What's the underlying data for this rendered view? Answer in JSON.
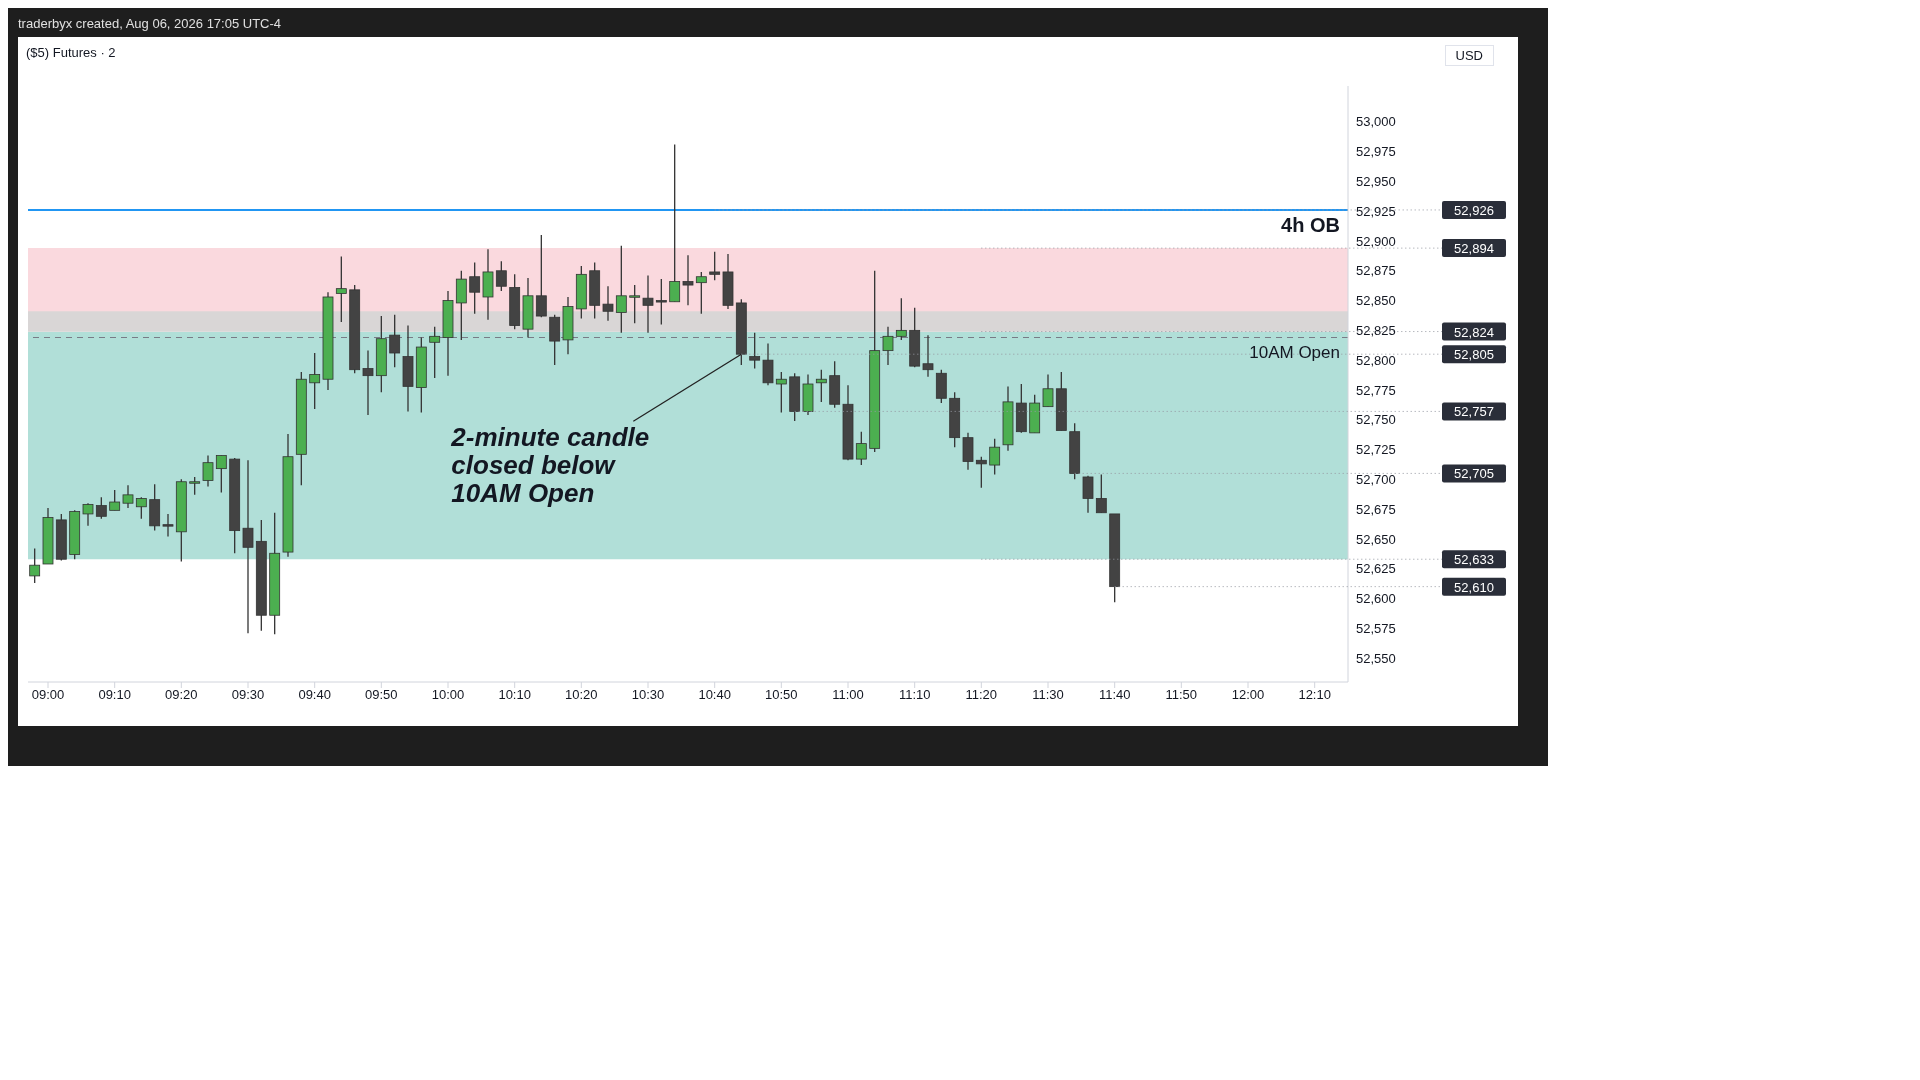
{
  "chart_data": {
    "type": "candlestick",
    "title": "traderbyx created, Aug 06, 2026 17:05 UTC-4",
    "subtitle": "($5) Futures · 2",
    "ylabel": "USD",
    "x": [
      8.9667,
      9,
      9.0333,
      9.0667,
      9.1,
      9.1333,
      9.1667,
      9.2,
      9.2333,
      9.2667,
      9.3,
      9.3333,
      9.3667,
      9.4,
      9.4333,
      9.4667,
      9.5,
      9.5333,
      9.5667,
      9.6,
      9.6333,
      9.6667,
      9.7,
      9.7333,
      9.7667,
      9.8,
      9.8333,
      9.8667,
      9.9,
      9.9333,
      9.9667,
      10,
      10.0333,
      10.0667,
      10.1,
      10.1333,
      10.1667,
      10.2,
      10.2333,
      10.2667,
      10.3,
      10.3333,
      10.3667,
      10.4,
      10.4333,
      10.4667,
      10.5,
      10.5333,
      10.5667,
      10.6,
      10.6333,
      10.6667,
      10.7,
      10.7333,
      10.7667,
      10.8,
      10.8333,
      10.8667,
      10.9,
      10.9333,
      10.9667,
      11,
      11.0333,
      11.0667,
      11.1,
      11.1333,
      11.1667,
      11.2,
      11.2333,
      11.2667,
      11.3,
      11.3333,
      11.3667,
      11.4,
      11.4333,
      11.4667,
      11.5,
      11.5333,
      11.5667,
      11.6,
      11.6333,
      11.6667
    ],
    "ohlc": [
      [
        52619,
        52642,
        52613,
        52628
      ],
      [
        52629,
        52676,
        52629,
        52668
      ],
      [
        52666,
        52671,
        52632,
        52633
      ],
      [
        52637,
        52674,
        52633,
        52673
      ],
      [
        52671,
        52680,
        52661,
        52679
      ],
      [
        52678,
        52685,
        52667,
        52669
      ],
      [
        52674,
        52691,
        52674,
        52681
      ],
      [
        52680,
        52695,
        52676,
        52687
      ],
      [
        52677,
        52685,
        52667,
        52684
      ],
      [
        52683,
        52696,
        52657,
        52661
      ],
      [
        52662,
        52671,
        52652,
        52661
      ],
      [
        52656,
        52700,
        52631,
        52698
      ],
      [
        52697,
        52702,
        52687,
        52698
      ],
      [
        52699,
        52720,
        52694,
        52714
      ],
      [
        52709,
        52720,
        52689,
        52720
      ],
      [
        52717,
        52718,
        52638,
        52657
      ],
      [
        52659,
        52716,
        52571,
        52643
      ],
      [
        52648,
        52666,
        52573,
        52586
      ],
      [
        52586,
        52672,
        52570,
        52638
      ],
      [
        52639,
        52738,
        52635,
        52719
      ],
      [
        52721,
        52790,
        52695,
        52784
      ],
      [
        52781,
        52806,
        52759,
        52788
      ],
      [
        52784,
        52857,
        52775,
        52853
      ],
      [
        52856,
        52887,
        52832,
        52860
      ],
      [
        52859,
        52863,
        52789,
        52792
      ],
      [
        52793,
        52808,
        52754,
        52787
      ],
      [
        52787,
        52837,
        52773,
        52818
      ],
      [
        52821,
        52838,
        52794,
        52806
      ],
      [
        52803,
        52829,
        52757,
        52778
      ],
      [
        52777,
        52819,
        52756,
        52811
      ],
      [
        52815,
        52828,
        52785,
        52820
      ],
      [
        52819,
        52858,
        52787,
        52850
      ],
      [
        52848,
        52875,
        52817,
        52868
      ],
      [
        52870,
        52882,
        52839,
        52857
      ],
      [
        52853,
        52893,
        52834,
        52874
      ],
      [
        52875,
        52883,
        52858,
        52862
      ],
      [
        52861,
        52872,
        52826,
        52829
      ],
      [
        52826,
        52869,
        52819,
        52854
      ],
      [
        52854,
        52905,
        52836,
        52837
      ],
      [
        52836,
        52838,
        52796,
        52816
      ],
      [
        52817,
        52853,
        52805,
        52845
      ],
      [
        52843,
        52879,
        52835,
        52872
      ],
      [
        52875,
        52882,
        52835,
        52846
      ],
      [
        52847,
        52862,
        52833,
        52841
      ],
      [
        52840,
        52896,
        52823,
        52854
      ],
      [
        52853,
        52863,
        52831,
        52854
      ],
      [
        52852,
        52871,
        52823,
        52846
      ],
      [
        52850,
        52868,
        52830,
        52849
      ],
      [
        52849,
        52981,
        52849,
        52866
      ],
      [
        52866,
        52888,
        52846,
        52863
      ],
      [
        52865,
        52874,
        52839,
        52870
      ],
      [
        52874,
        52891,
        52867,
        52872
      ],
      [
        52874,
        52889,
        52843,
        52846
      ],
      [
        52848,
        52851,
        52796,
        52805
      ],
      [
        52803,
        52823,
        52793,
        52800
      ],
      [
        52800,
        52814,
        52779,
        52781
      ],
      [
        52780,
        52790,
        52756,
        52784
      ],
      [
        52786,
        52789,
        52749,
        52757
      ],
      [
        52757,
        52788,
        52754,
        52780
      ],
      [
        52781,
        52792,
        52765,
        52784
      ],
      [
        52787,
        52799,
        52760,
        52763
      ],
      [
        52763,
        52779,
        52716,
        52717
      ],
      [
        52717,
        52740,
        52712,
        52730
      ],
      [
        52726,
        52875,
        52723,
        52808
      ],
      [
        52808,
        52828,
        52796,
        52820
      ],
      [
        52820,
        52852,
        52817,
        52825
      ],
      [
        52825,
        52844,
        52794,
        52795
      ],
      [
        52797,
        52821,
        52786,
        52792
      ],
      [
        52789,
        52792,
        52764,
        52768
      ],
      [
        52768,
        52773,
        52727,
        52735
      ],
      [
        52735,
        52739,
        52708,
        52715
      ],
      [
        52716,
        52719,
        52693,
        52713
      ],
      [
        52712,
        52734,
        52704,
        52727
      ],
      [
        52729,
        52778,
        52724,
        52765
      ],
      [
        52764,
        52780,
        52739,
        52740
      ],
      [
        52739,
        52771,
        52739,
        52764
      ],
      [
        52761,
        52788,
        52761,
        52776
      ],
      [
        52776,
        52790,
        52741,
        52741
      ],
      [
        52740,
        52747,
        52700,
        52705
      ],
      [
        52702,
        52703,
        52672,
        52684
      ],
      [
        52684,
        52704,
        52672,
        52672
      ],
      [
        52671,
        52671,
        52597,
        52610
      ]
    ],
    "colors": [
      "#4caf50",
      "#4caf50",
      "#434343",
      "#4caf50",
      "#4caf50",
      "#434343",
      "#4caf50",
      "#4caf50",
      "#4caf50",
      "#434343",
      "#434343",
      "#4caf50",
      "#4caf50",
      "#4caf50",
      "#4caf50",
      "#434343",
      "#434343",
      "#434343",
      "#4caf50",
      "#4caf50",
      "#4caf50",
      "#4caf50",
      "#4caf50",
      "#4caf50",
      "#434343",
      "#434343",
      "#4caf50",
      "#434343",
      "#434343",
      "#4caf50",
      "#4caf50",
      "#4caf50",
      "#4caf50",
      "#434343",
      "#4caf50",
      "#434343",
      "#434343",
      "#4caf50",
      "#434343",
      "#434343",
      "#4caf50",
      "#4caf50",
      "#434343",
      "#434343",
      "#4caf50",
      "#4caf50",
      "#434343",
      "#434343",
      "#4caf50",
      "#434343",
      "#4caf50",
      "#434343",
      "#434343",
      "#434343",
      "#434343",
      "#434343",
      "#4caf50",
      "#434343",
      "#4caf50",
      "#4caf50",
      "#434343",
      "#434343",
      "#4caf50",
      "#4caf50",
      "#4caf50",
      "#4caf50",
      "#434343",
      "#434343",
      "#434343",
      "#434343",
      "#434343",
      "#434343",
      "#4caf50",
      "#4caf50",
      "#434343",
      "#4caf50",
      "#4caf50",
      "#434343",
      "#434343",
      "#434343",
      "#434343",
      "#434343"
    ],
    "xlim": [
      8.95,
      12.25
    ],
    "xticks": [
      {
        "value": 9,
        "label": "09:00"
      },
      {
        "value": 9.1667,
        "label": "09:10"
      },
      {
        "value": 9.3333,
        "label": "09:20"
      },
      {
        "value": 9.5,
        "label": "09:30"
      },
      {
        "value": 9.6667,
        "label": "09:40"
      },
      {
        "value": 9.8333,
        "label": "09:50"
      },
      {
        "value": 10,
        "label": "10:00"
      },
      {
        "value": 10.1667,
        "label": "10:10"
      },
      {
        "value": 10.3333,
        "label": "10:20"
      },
      {
        "value": 10.5,
        "label": "10:30"
      },
      {
        "value": 10.6667,
        "label": "10:40"
      },
      {
        "value": 10.8333,
        "label": "10:50"
      },
      {
        "value": 11,
        "label": "11:00"
      },
      {
        "value": 11.1667,
        "label": "11:10"
      },
      {
        "value": 11.3333,
        "label": "11:20"
      },
      {
        "value": 11.5,
        "label": "11:30"
      },
      {
        "value": 11.6667,
        "label": "11:40"
      },
      {
        "value": 11.8333,
        "label": "11:50"
      },
      {
        "value": 12,
        "label": "12:00"
      },
      {
        "value": 12.1667,
        "label": "12:10"
      }
    ],
    "ylim": [
      52530,
      53030
    ],
    "yticks": [
      {
        "value": 52550,
        "label": "52,550"
      },
      {
        "value": 52575,
        "label": "52,575"
      },
      {
        "value": 52600,
        "label": "52,600"
      },
      {
        "value": 52625,
        "label": "52,625"
      },
      {
        "value": 52650,
        "label": "52,650"
      },
      {
        "value": 52675,
        "label": "52,675"
      },
      {
        "value": 52700,
        "label": "52,700"
      },
      {
        "value": 52725,
        "label": "52,725"
      },
      {
        "value": 52750,
        "label": "52,750"
      },
      {
        "value": 52775,
        "label": "52,775"
      },
      {
        "value": 52800,
        "label": "52,800"
      },
      {
        "value": 52825,
        "label": "52,825"
      },
      {
        "value": 52850,
        "label": "52,850"
      },
      {
        "value": 52875,
        "label": "52,875"
      },
      {
        "value": 52900,
        "label": "52,900"
      },
      {
        "value": 52925,
        "label": "52,925"
      },
      {
        "value": 52950,
        "label": "52,950"
      },
      {
        "value": 52975,
        "label": "52,975"
      },
      {
        "value": 53000,
        "label": "53,000"
      }
    ],
    "ref_lines": [
      {
        "axis": "y",
        "value": 52926,
        "label": "4h OB",
        "color": "#2196f3",
        "line_style": "solid"
      },
      {
        "axis": "y",
        "value": 52819,
        "label": "10AM Open",
        "color": "#787b86",
        "line_style": "dashed"
      }
    ],
    "bands": [
      {
        "axis": "y",
        "from": 52633,
        "to": 52824,
        "color": "#a8dcd4"
      },
      {
        "axis": "y",
        "from": 52824,
        "to": 52894,
        "color": "#f9d5da"
      },
      {
        "axis": "y",
        "from": 52824,
        "to": 52841,
        "color": "#d5d5d5"
      }
    ],
    "annotations": [
      {
        "text": "2-minute candle\nclosed below\n10AM Open",
        "x": 10.7333,
        "y": 52805
      },
      {
        "text": "52,926",
        "x": 10.6667,
        "y": 52926
      },
      {
        "text": "52,894",
        "x": 11.3333,
        "y": 52894
      },
      {
        "text": "52,824",
        "x": 11.3333,
        "y": 52824
      },
      {
        "text": "52,805",
        "x": 10.7333,
        "y": 52805
      },
      {
        "text": "52,757",
        "x": 10.8667,
        "y": 52757
      },
      {
        "text": "52,705",
        "x": 11.5667,
        "y": 52705
      },
      {
        "text": "52,633",
        "x": 11.3333,
        "y": 52633
      },
      {
        "text": "52,610",
        "x": 11.6667,
        "y": 52610
      }
    ],
    "grid": false,
    "legend": false
  }
}
